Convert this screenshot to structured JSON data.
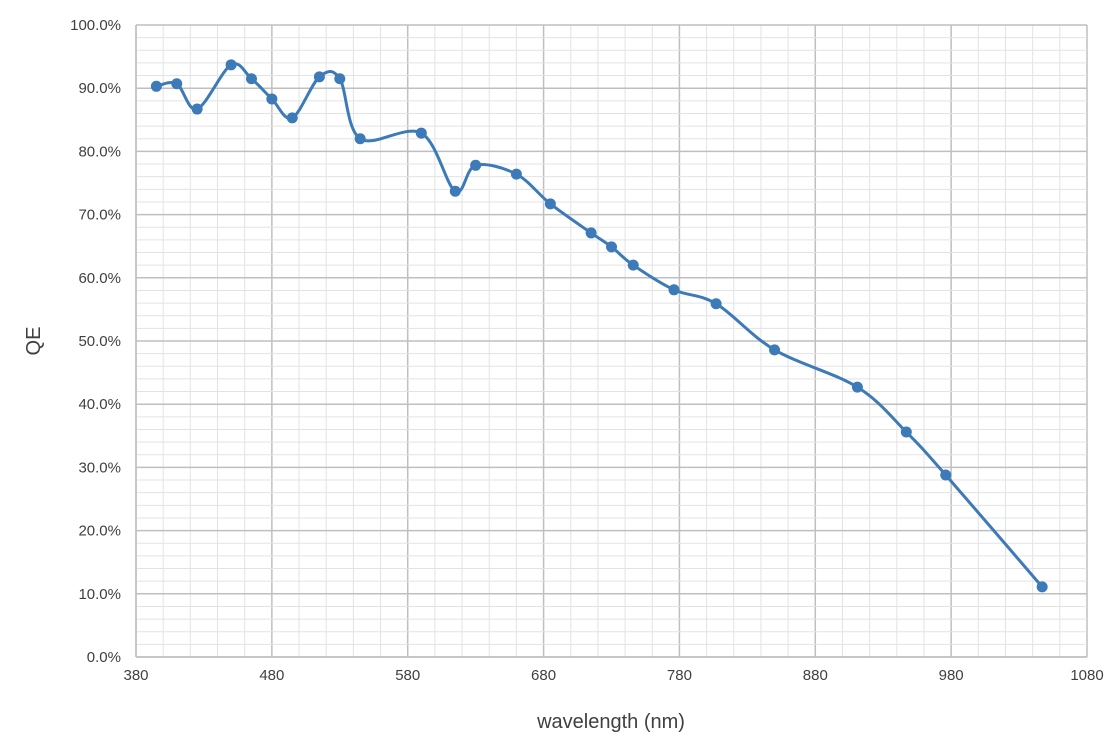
{
  "chart_data": {
    "type": "line",
    "title": "",
    "xlabel": "wavelength (nm)",
    "ylabel": "QE",
    "xlim": [
      380,
      1080
    ],
    "ylim": [
      0,
      100
    ],
    "x_ticks": [
      380,
      480,
      580,
      680,
      780,
      880,
      980,
      1080
    ],
    "y_ticks": [
      0,
      10,
      20,
      30,
      40,
      50,
      60,
      70,
      80,
      90,
      100
    ],
    "y_tick_labels": [
      "0.0%",
      "10.0%",
      "20.0%",
      "30.0%",
      "40.0%",
      "50.0%",
      "60.0%",
      "70.0%",
      "80.0%",
      "90.0%",
      "100.0%"
    ],
    "x_minor_step": 20,
    "y_minor_step": 2,
    "grid": true,
    "smooth": true,
    "markers": true,
    "series": [
      {
        "color": "#3d7ab8",
        "x": [
          395,
          410,
          425,
          450,
          465,
          480,
          495,
          515,
          530,
          545,
          590,
          615,
          630,
          660,
          685,
          715,
          730,
          746,
          776,
          807,
          850,
          911,
          947,
          976,
          1047
        ],
        "y": [
          90.3,
          90.7,
          86.7,
          93.7,
          91.5,
          88.3,
          85.3,
          91.8,
          91.5,
          82.0,
          82.9,
          73.7,
          77.8,
          76.4,
          71.7,
          67.1,
          64.9,
          62.0,
          58.1,
          55.9,
          48.6,
          42.7,
          35.6,
          28.8,
          11.1
        ]
      }
    ]
  }
}
